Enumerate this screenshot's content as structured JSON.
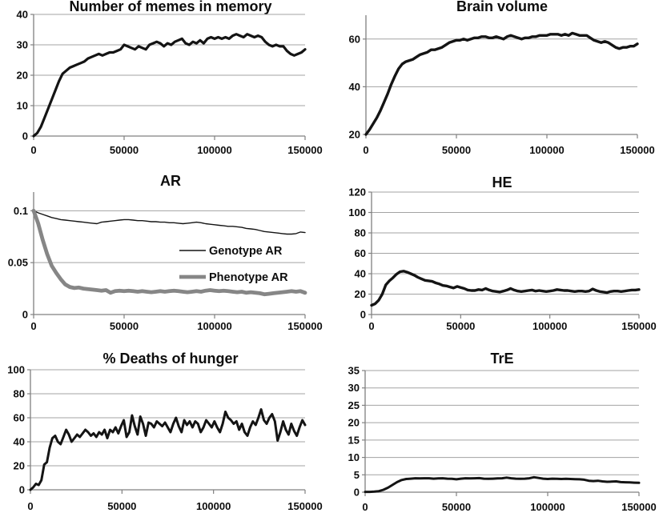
{
  "style": {
    "background": "#ffffff",
    "text_color": "#0d0d0d",
    "grid_color": "#a3a3a3",
    "axis_color": "#808080",
    "main_line_color": "#141414",
    "phenotype_line_color": "#868686"
  },
  "chart_data": [
    {
      "type": "line",
      "title": "Number of memes in memory",
      "xlabel": "",
      "ylabel": "",
      "xlim": [
        0,
        150000
      ],
      "xticks": [
        0,
        50000,
        100000,
        150000
      ],
      "xtick_labels": [
        "0",
        "50000",
        "100000",
        "150000"
      ],
      "ylim": [
        0,
        40
      ],
      "yticks": [
        0,
        10,
        20,
        30,
        40
      ],
      "ytick_labels": [
        "0",
        "10",
        "20",
        "30",
        "40"
      ],
      "grid": true,
      "legend": null,
      "x_step": 2000,
      "series": [
        {
          "name": "memes-in-memory",
          "color": "#141414",
          "line_width": 3.2,
          "values": [
            0,
            1,
            3,
            6,
            9,
            12,
            15,
            18,
            20.5,
            21.5,
            22.5,
            23,
            23.5,
            24,
            24.5,
            25.5,
            26,
            26.5,
            27,
            26.5,
            27,
            27.5,
            27.5,
            28,
            28.5,
            30,
            29.5,
            29,
            28.5,
            29.5,
            29,
            28.5,
            30,
            30.5,
            31,
            30.5,
            29.5,
            30.5,
            30,
            31,
            31.5,
            32,
            30.5,
            30,
            31,
            30.5,
            31.5,
            30.5,
            32,
            32.5,
            32,
            32.5,
            32,
            32.5,
            32,
            33,
            33.5,
            33,
            32.5,
            33.5,
            33,
            32.5,
            33,
            32.5,
            31,
            30,
            29.5,
            30,
            29.5,
            29.5,
            28,
            27,
            26.5,
            27,
            27.5,
            28.5
          ]
        }
      ]
    },
    {
      "type": "line",
      "title": "Brain volume",
      "xlabel": "",
      "ylabel": "",
      "xlim": [
        0,
        150000
      ],
      "xticks": [
        0,
        50000,
        100000,
        150000
      ],
      "xtick_labels": [
        "0",
        "50000",
        "100000",
        "150000"
      ],
      "ylim": [
        20,
        70
      ],
      "yticks": [
        20,
        40,
        60
      ],
      "ytick_labels": [
        "20",
        "40",
        "60"
      ],
      "grid": true,
      "legend": null,
      "x_step": 2000,
      "series": [
        {
          "name": "brain-volume",
          "color": "#141414",
          "line_width": 3.4,
          "values": [
            20,
            22,
            24.5,
            27,
            30,
            33.5,
            37,
            41,
            44.5,
            47.5,
            49.5,
            50.5,
            51,
            51.5,
            52.5,
            53.5,
            54,
            54.5,
            55.5,
            55.5,
            56,
            56.5,
            57.5,
            58.5,
            59,
            59.5,
            59.5,
            60,
            59.5,
            60,
            60.5,
            60.5,
            61,
            61,
            60.5,
            60.5,
            61,
            60.5,
            60,
            61,
            61.5,
            61,
            60.5,
            60,
            60.5,
            60.5,
            61,
            61,
            61.5,
            61.5,
            61.5,
            62,
            62,
            62,
            61.5,
            62,
            61.5,
            62.5,
            62,
            61.5,
            61.5,
            61.5,
            60.5,
            59.5,
            59,
            58.5,
            59,
            58.5,
            57.5,
            56.5,
            56,
            56.5,
            56.5,
            57,
            57,
            58
          ]
        }
      ]
    },
    {
      "type": "line",
      "title": "AR",
      "xlabel": "",
      "ylabel": "",
      "xlim": [
        0,
        150000
      ],
      "xticks": [
        0,
        50000,
        100000,
        150000
      ],
      "xtick_labels": [
        "0",
        "50000",
        "100000",
        "150000"
      ],
      "ylim": [
        0,
        0.118
      ],
      "yticks": [
        0,
        0.05,
        0.1
      ],
      "ytick_labels": [
        "0",
        "0.05",
        "0.1"
      ],
      "grid": true,
      "legend": {
        "position": "inside-right",
        "entries": [
          {
            "label": "Genotype AR",
            "color": "#141414",
            "line_width": 1.4
          },
          {
            "label": "Phenotype AR",
            "color": "#868686",
            "line_width": 4.8
          }
        ]
      },
      "x_step": 2500,
      "series": [
        {
          "name": "Genotype AR",
          "color": "#141414",
          "line_width": 1.4,
          "values": [
            0.1,
            0.098,
            0.0965,
            0.095,
            0.0935,
            0.0925,
            0.0915,
            0.091,
            0.0905,
            0.09,
            0.0895,
            0.089,
            0.0885,
            0.088,
            0.0875,
            0.089,
            0.0895,
            0.09,
            0.0905,
            0.091,
            0.0915,
            0.0915,
            0.091,
            0.0905,
            0.0905,
            0.09,
            0.0895,
            0.0895,
            0.089,
            0.089,
            0.0885,
            0.0885,
            0.088,
            0.0875,
            0.088,
            0.0885,
            0.089,
            0.0885,
            0.0875,
            0.087,
            0.0865,
            0.086,
            0.0855,
            0.085,
            0.085,
            0.0845,
            0.084,
            0.083,
            0.0825,
            0.082,
            0.081,
            0.08,
            0.0795,
            0.079,
            0.0785,
            0.078,
            0.0775,
            0.0775,
            0.078,
            0.0795,
            0.079
          ]
        },
        {
          "name": "Phenotype AR",
          "color": "#868686",
          "line_width": 4.8,
          "values": [
            0.1,
            0.088,
            0.072,
            0.058,
            0.047,
            0.04,
            0.034,
            0.029,
            0.0265,
            0.0255,
            0.026,
            0.025,
            0.0245,
            0.024,
            0.0235,
            0.023,
            0.0235,
            0.021,
            0.0225,
            0.023,
            0.0225,
            0.023,
            0.0225,
            0.022,
            0.0225,
            0.022,
            0.0215,
            0.022,
            0.0225,
            0.022,
            0.0225,
            0.023,
            0.0225,
            0.022,
            0.0215,
            0.022,
            0.0225,
            0.022,
            0.023,
            0.0235,
            0.023,
            0.0225,
            0.023,
            0.0225,
            0.022,
            0.0215,
            0.022,
            0.021,
            0.0215,
            0.021,
            0.0205,
            0.0195,
            0.02,
            0.0205,
            0.021,
            0.0215,
            0.022,
            0.0225,
            0.022,
            0.0225,
            0.021
          ]
        }
      ]
    },
    {
      "type": "line",
      "title": "HE",
      "xlabel": "",
      "ylabel": "",
      "xlim": [
        0,
        150000
      ],
      "xticks": [
        0,
        50000,
        100000,
        150000
      ],
      "xtick_labels": [
        "0",
        "50000",
        "100000",
        "150000"
      ],
      "ylim": [
        0,
        120
      ],
      "yticks": [
        0,
        20,
        40,
        60,
        80,
        100,
        120
      ],
      "ytick_labels": [
        "0",
        "20",
        "40",
        "60",
        "80",
        "100",
        "120"
      ],
      "grid": true,
      "legend": null,
      "x_step": 2000,
      "series": [
        {
          "name": "HE",
          "color": "#141414",
          "line_width": 3.4,
          "values": [
            9,
            10.5,
            14,
            20,
            29,
            33,
            36,
            39.5,
            42,
            42.5,
            41.5,
            40,
            38.5,
            36.5,
            35,
            33.5,
            33,
            32.5,
            31,
            30,
            28.5,
            28,
            27,
            26,
            27.5,
            26.5,
            25.5,
            24,
            23.5,
            23.5,
            24.5,
            24,
            25.5,
            24,
            23,
            22.5,
            22,
            23,
            24,
            25.5,
            24,
            23,
            22.5,
            23,
            23.5,
            24,
            23,
            23.5,
            23,
            22.5,
            23,
            23.5,
            24.5,
            24,
            23.5,
            23.5,
            23,
            22.5,
            23,
            23,
            22.5,
            23,
            25,
            23.5,
            22.5,
            22,
            21.5,
            22.5,
            23,
            23,
            22.5,
            23,
            23.5,
            24,
            24,
            24.5
          ]
        }
      ]
    },
    {
      "type": "line",
      "title": "% Deaths of hunger",
      "xlabel": "",
      "ylabel": "",
      "xlim": [
        0,
        150000
      ],
      "xticks": [
        0,
        50000,
        100000,
        150000
      ],
      "xtick_labels": [
        "0",
        "50000",
        "100000",
        "150000"
      ],
      "ylim": [
        0,
        100
      ],
      "yticks": [
        0,
        20,
        40,
        60,
        80,
        100
      ],
      "ytick_labels": [
        "0",
        "20",
        "40",
        "60",
        "80",
        "100"
      ],
      "grid": true,
      "legend": null,
      "x_step": 1500,
      "series": [
        {
          "name": "deaths-of-hunger",
          "color": "#141414",
          "line_width": 3,
          "values": [
            0,
            2,
            5,
            4,
            8,
            21,
            23,
            35,
            43,
            45,
            40,
            38,
            44,
            50,
            46,
            40,
            43,
            46,
            44,
            47,
            50,
            48,
            45,
            47,
            44,
            48,
            46,
            50,
            43,
            50,
            48,
            52,
            47,
            53,
            58,
            44,
            48,
            62,
            53,
            46,
            61,
            55,
            45,
            56,
            55,
            52,
            57,
            55,
            53,
            56,
            52,
            48,
            55,
            60,
            53,
            48,
            58,
            54,
            57,
            52,
            57,
            55,
            48,
            52,
            58,
            55,
            52,
            57,
            52,
            48,
            55,
            65,
            60,
            58,
            55,
            57,
            50,
            55,
            48,
            45,
            52,
            57,
            54,
            60,
            67,
            58,
            55,
            60,
            63,
            57,
            41,
            48,
            57,
            50,
            46,
            55,
            49,
            45,
            52,
            58,
            54
          ]
        }
      ]
    },
    {
      "type": "line",
      "title": "TrE",
      "xlabel": "",
      "ylabel": "",
      "xlim": [
        0,
        150000
      ],
      "xticks": [
        0,
        50000,
        100000,
        150000
      ],
      "xtick_labels": [
        "0",
        "50000",
        "100000",
        "150000"
      ],
      "ylim": [
        0,
        35
      ],
      "yticks": [
        0,
        5,
        10,
        15,
        20,
        25,
        30,
        35
      ],
      "ytick_labels": [
        "0",
        "5",
        "10",
        "15",
        "20",
        "25",
        "30",
        "35"
      ],
      "grid": true,
      "legend": null,
      "x_step": 2500,
      "series": [
        {
          "name": "TrE",
          "color": "#141414",
          "line_width": 3,
          "values": [
            0.1,
            0.1,
            0.15,
            0.3,
            0.7,
            1.3,
            2.1,
            2.9,
            3.5,
            3.8,
            3.9,
            4,
            3.95,
            4,
            4,
            3.9,
            3.95,
            4,
            3.9,
            3.85,
            3.7,
            3.9,
            4,
            3.95,
            4,
            4.05,
            3.9,
            3.85,
            3.9,
            3.95,
            4,
            4.2,
            4,
            3.9,
            3.85,
            3.9,
            4,
            4.3,
            4.1,
            3.9,
            3.8,
            3.9,
            3.85,
            3.8,
            3.85,
            3.8,
            3.75,
            3.7,
            3.6,
            3.3,
            3.2,
            3.3,
            3.1,
            3,
            3.05,
            3.1,
            2.9,
            2.85,
            2.8,
            2.75,
            2.7
          ]
        }
      ]
    }
  ]
}
